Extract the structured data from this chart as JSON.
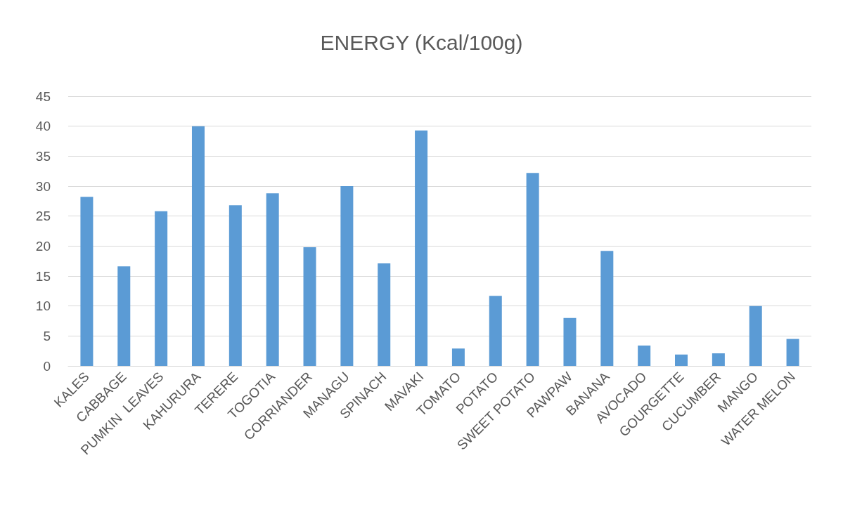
{
  "chart_data": {
    "type": "bar",
    "title": "ENERGY (Kcal/100g)",
    "categories": [
      "KALES",
      "CABBAGE",
      "PUMKIN  LEAVES",
      "KAHURURA",
      "TERERE",
      "TOGOTIA",
      "CORRIANDER",
      "MANAGU",
      "SPINACH",
      "MAVAKI",
      "TOMATO",
      "POTATO",
      "SWEET POTATO",
      "PAWPAW",
      "BANANA",
      "AVOCADO",
      "GOURGETTE",
      "CUCUMBER",
      "MANGO",
      "WATER MELON"
    ],
    "values": [
      28.2,
      16.6,
      25.8,
      40,
      26.8,
      28.8,
      19.8,
      30,
      17.1,
      39.3,
      2.9,
      11.7,
      32.2,
      8,
      19.2,
      3.4,
      1.9,
      2.1,
      10,
      4.5
    ],
    "color": "#5b9bd5",
    "ylim": [
      0,
      45
    ],
    "yticks": [
      0,
      5,
      10,
      15,
      20,
      25,
      30,
      35,
      40,
      45
    ],
    "grid": "y"
  }
}
